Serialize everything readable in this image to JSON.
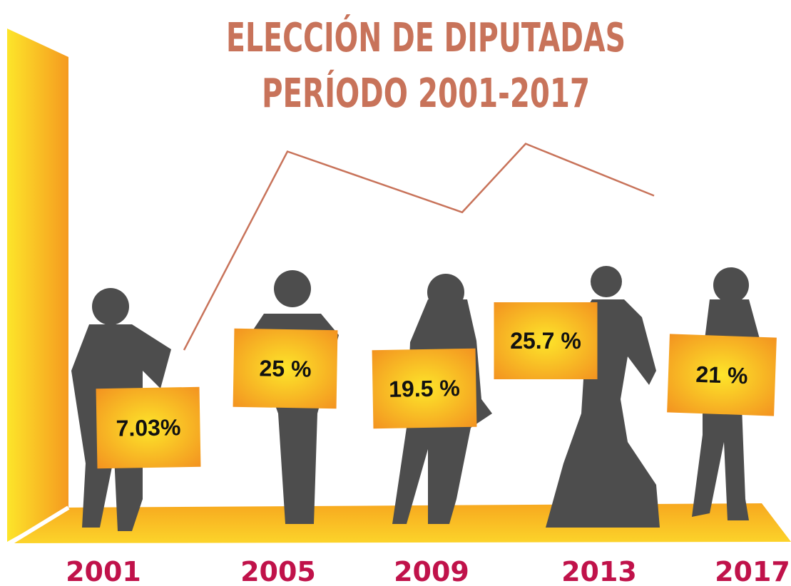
{
  "chart_data": {
    "type": "line",
    "title": [
      "ELECCIÓN DE DIPUTADAS",
      "PERÍODO 2001-2017"
    ],
    "categories": [
      "2001",
      "2005",
      "2009",
      "2013",
      "2017"
    ],
    "values": [
      7.03,
      25,
      19.5,
      25.7,
      21
    ],
    "value_labels": [
      "7.03%",
      "25 %",
      "19.5 %",
      "25.7 %",
      "21 %"
    ],
    "color": "#c8735a"
  }
}
